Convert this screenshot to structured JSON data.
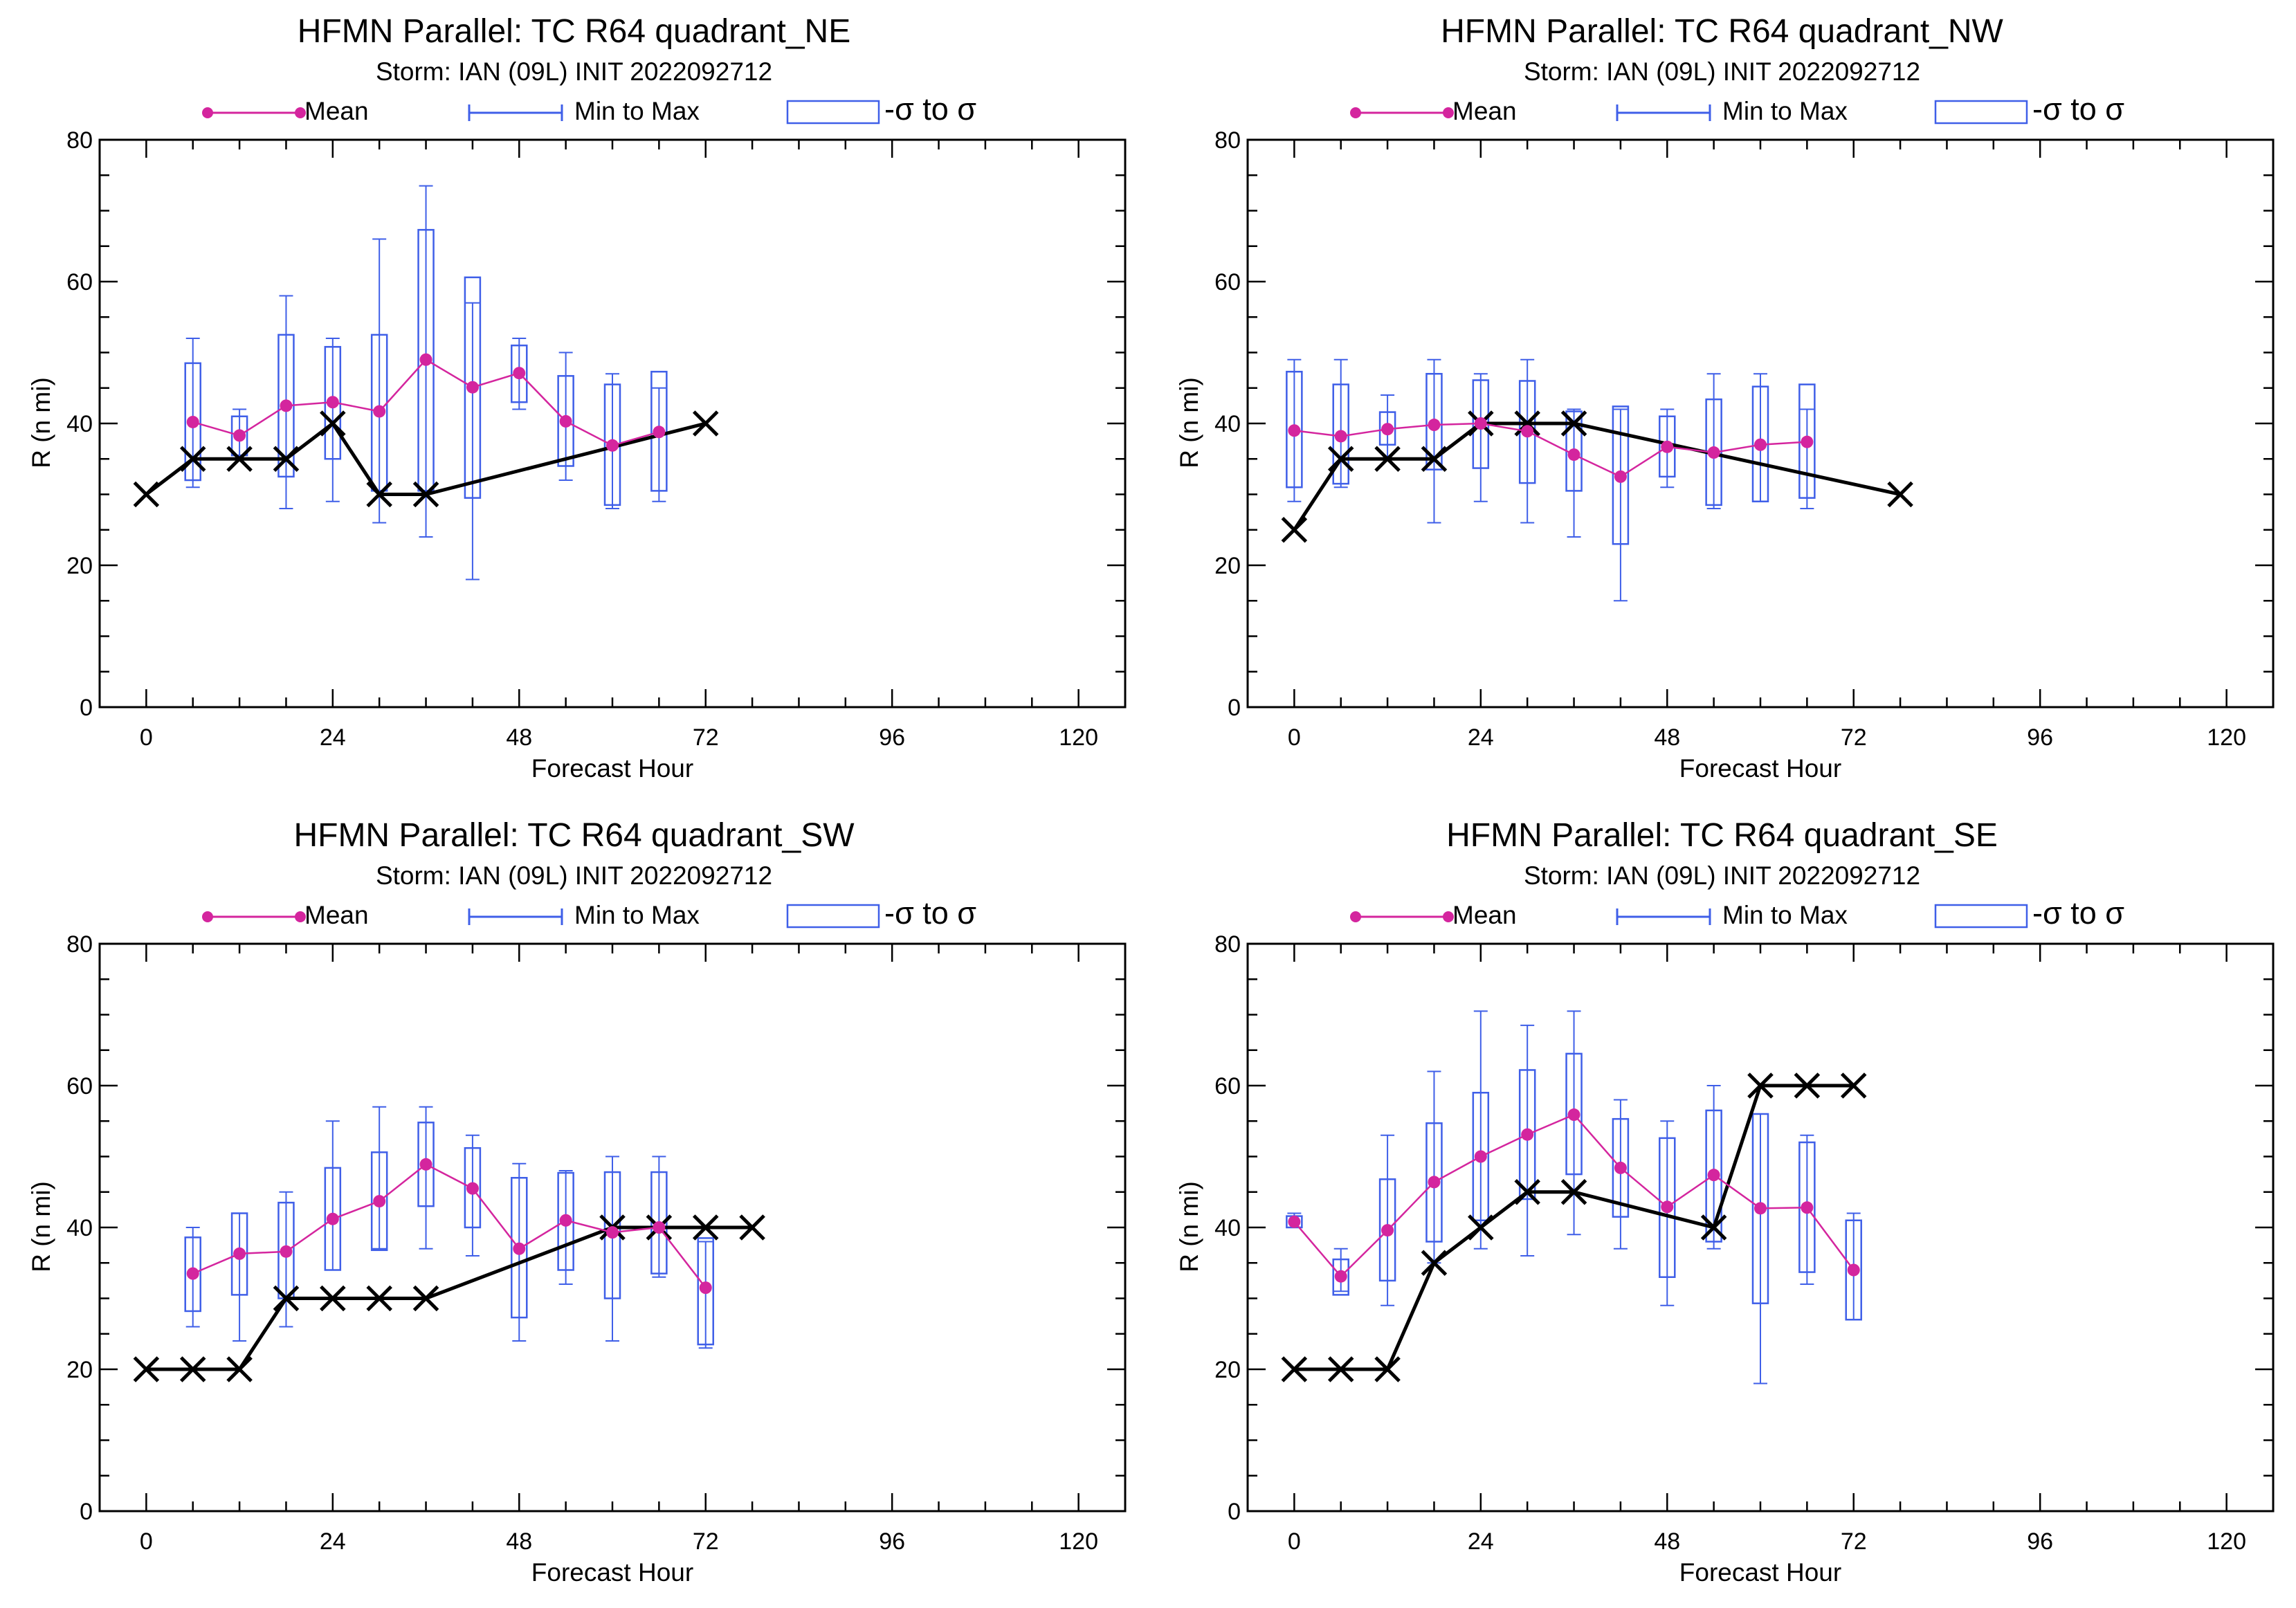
{
  "colors": {
    "mean": "#d4259e",
    "range": "#3f5fe8",
    "best_track": "#000000",
    "axes": "#000000"
  },
  "chart_data": [
    {
      "type": "box",
      "title": "HFMN Parallel: TC  R64 quadrant_NE",
      "subtitle": "Storm: IAN (09L) INIT 2022092712",
      "xlabel": "Forecast Hour",
      "ylabel": "R (n mi)",
      "xlim": [
        -6,
        126
      ],
      "ylim": [
        0,
        80
      ],
      "xticks": [
        0,
        24,
        48,
        72,
        96,
        120
      ],
      "yticks": [
        0,
        20,
        40,
        60,
        80
      ],
      "legend": {
        "mean": "Mean",
        "range": "Min to Max",
        "sigma": "-σ to σ"
      },
      "mean": {
        "x": [
          6,
          12,
          18,
          24,
          30,
          36,
          42,
          48,
          54,
          60,
          66
        ],
        "y": [
          40.2,
          38.3,
          42.5,
          43,
          41.7,
          49,
          45.1,
          47.1,
          40.3,
          36.9,
          38.8
        ]
      },
      "range": {
        "x": [
          6,
          12,
          18,
          24,
          30,
          36,
          42,
          48,
          54,
          60,
          66
        ],
        "min": [
          31,
          35,
          28,
          29,
          26,
          24,
          18,
          42,
          32,
          28,
          29
        ],
        "max": [
          52,
          42,
          58,
          52,
          66,
          73.5,
          57,
          52,
          50,
          47,
          45
        ]
      },
      "sigma": {
        "x": [
          6,
          12,
          18,
          24,
          30,
          36,
          42,
          48,
          54,
          60,
          66
        ],
        "low": [
          32,
          35.5,
          32.5,
          35,
          30.5,
          30.5,
          29.5,
          43,
          34,
          28.5,
          30.5
        ],
        "high": [
          48.5,
          41,
          52.5,
          50.8,
          52.5,
          67.3,
          60.6,
          51,
          46.7,
          45.5,
          47.3
        ]
      },
      "best_track": {
        "x": [
          0,
          6,
          12,
          18,
          24,
          30,
          36,
          72
        ],
        "y": [
          30,
          35,
          35,
          35,
          40,
          30,
          30,
          40
        ]
      }
    },
    {
      "type": "box",
      "title": "HFMN Parallel: TC  R64 quadrant_NW",
      "subtitle": "Storm: IAN (09L) INIT 2022092712",
      "xlabel": "Forecast Hour",
      "ylabel": "R (n mi)",
      "xlim": [
        -6,
        126
      ],
      "ylim": [
        0,
        80
      ],
      "xticks": [
        0,
        24,
        48,
        72,
        96,
        120
      ],
      "yticks": [
        0,
        20,
        40,
        60,
        80
      ],
      "legend": {
        "mean": "Mean",
        "range": "Min to Max",
        "sigma": "-σ to σ"
      },
      "mean": {
        "x": [
          0,
          6,
          12,
          18,
          24,
          30,
          36,
          42,
          48,
          54,
          60,
          66
        ],
        "y": [
          39,
          38.2,
          39.2,
          39.8,
          40,
          38.9,
          35.6,
          32.5,
          36.7,
          35.9,
          37,
          37.4
        ]
      },
      "range": {
        "x": [
          0,
          6,
          12,
          18,
          24,
          30,
          36,
          42,
          48,
          54,
          60,
          66
        ],
        "min": [
          29,
          31,
          35,
          26,
          29,
          26,
          24,
          15,
          31,
          28,
          29,
          28
        ],
        "max": [
          49,
          49,
          44,
          49,
          47,
          49,
          42,
          42,
          42,
          47,
          47,
          42
        ]
      },
      "sigma": {
        "x": [
          0,
          6,
          12,
          18,
          24,
          30,
          36,
          42,
          48,
          54,
          60,
          66
        ],
        "low": [
          31,
          31.5,
          37,
          33.5,
          33.7,
          31.6,
          30.5,
          23,
          32.5,
          28.5,
          29,
          29.5
        ],
        "high": [
          47.3,
          45.5,
          41.6,
          47,
          46.1,
          46,
          41.7,
          42.4,
          41,
          43.4,
          45.2,
          45.5
        ]
      },
      "best_track": {
        "x": [
          0,
          6,
          12,
          18,
          24,
          30,
          36,
          78
        ],
        "y": [
          25,
          35,
          35,
          35,
          40,
          40,
          40,
          30
        ]
      }
    },
    {
      "type": "box",
      "title": "HFMN Parallel: TC  R64 quadrant_SW",
      "subtitle": "Storm: IAN (09L) INIT 2022092712",
      "xlabel": "Forecast Hour",
      "ylabel": "R (n mi)",
      "xlim": [
        -6,
        126
      ],
      "ylim": [
        0,
        80
      ],
      "xticks": [
        0,
        24,
        48,
        72,
        96,
        120
      ],
      "yticks": [
        0,
        20,
        40,
        60,
        80
      ],
      "legend": {
        "mean": "Mean",
        "range": "Min to Max",
        "sigma": "-σ to σ"
      },
      "mean": {
        "x": [
          6,
          12,
          18,
          24,
          30,
          36,
          42,
          48,
          54,
          60,
          66,
          72
        ],
        "y": [
          33.5,
          36.3,
          36.6,
          41.2,
          43.7,
          48.9,
          45.5,
          37,
          41,
          39.3,
          40,
          31.5
        ]
      },
      "range": {
        "x": [
          6,
          12,
          18,
          24,
          30,
          36,
          42,
          48,
          54,
          60,
          66,
          72
        ],
        "min": [
          26,
          24,
          26,
          34,
          37,
          37,
          36,
          24,
          32,
          24,
          33,
          23
        ],
        "max": [
          40,
          42,
          45,
          55,
          57,
          57,
          53,
          49,
          48,
          50,
          50,
          38
        ]
      },
      "sigma": {
        "x": [
          6,
          12,
          18,
          24,
          30,
          36,
          42,
          48,
          54,
          60,
          66,
          72
        ],
        "low": [
          28.2,
          30.5,
          30,
          34,
          36.8,
          43,
          40,
          27.3,
          34,
          30,
          33.5,
          23.5
        ],
        "high": [
          38.6,
          42,
          43.5,
          48.4,
          50.6,
          54.8,
          51.2,
          47,
          47.7,
          47.8,
          47.8,
          38.5
        ]
      },
      "best_track": {
        "x": [
          0,
          6,
          12,
          18,
          24,
          30,
          36,
          60,
          66,
          72,
          78
        ],
        "y": [
          20,
          20,
          20,
          30,
          30,
          30,
          30,
          40,
          40,
          40,
          40
        ]
      }
    },
    {
      "type": "box",
      "title": "HFMN Parallel: TC  R64 quadrant_SE",
      "subtitle": "Storm: IAN (09L) INIT 2022092712",
      "xlabel": "Forecast Hour",
      "ylabel": "R (n mi)",
      "xlim": [
        -6,
        126
      ],
      "ylim": [
        0,
        80
      ],
      "xticks": [
        0,
        24,
        48,
        72,
        96,
        120
      ],
      "yticks": [
        0,
        20,
        40,
        60,
        80
      ],
      "legend": {
        "mean": "Mean",
        "range": "Min to Max",
        "sigma": "-σ to σ"
      },
      "mean": {
        "x": [
          0,
          6,
          12,
          18,
          24,
          30,
          36,
          42,
          48,
          54,
          60,
          66,
          72
        ],
        "y": [
          40.8,
          33.1,
          39.6,
          46.4,
          50,
          53.1,
          55.9,
          48.4,
          42.9,
          47.4,
          42.7,
          42.8,
          34
        ]
      },
      "range": {
        "x": [
          0,
          6,
          12,
          18,
          24,
          30,
          36,
          42,
          48,
          54,
          60,
          66,
          72
        ],
        "min": [
          40,
          31,
          29,
          35,
          37,
          36,
          39,
          37,
          29,
          37,
          18,
          32,
          27
        ],
        "max": [
          42,
          37,
          53,
          62,
          70.5,
          68.5,
          70.5,
          58,
          55,
          60,
          56,
          53,
          42
        ]
      },
      "sigma": {
        "x": [
          0,
          6,
          12,
          18,
          24,
          30,
          36,
          42,
          48,
          54,
          60,
          66,
          72
        ],
        "low": [
          40,
          30.5,
          32.5,
          38,
          41,
          44,
          47.5,
          41.5,
          33,
          38,
          29.3,
          33.7,
          27
        ],
        "high": [
          41.6,
          35.5,
          46.8,
          54.7,
          59,
          62.2,
          64.5,
          55.3,
          52.6,
          56.5,
          56,
          52,
          41
        ]
      },
      "best_track": {
        "x": [
          0,
          6,
          12,
          18,
          24,
          30,
          36,
          54,
          60,
          66,
          72
        ],
        "y": [
          20,
          20,
          20,
          35,
          40,
          45,
          45,
          40,
          60,
          60,
          60
        ]
      }
    }
  ]
}
